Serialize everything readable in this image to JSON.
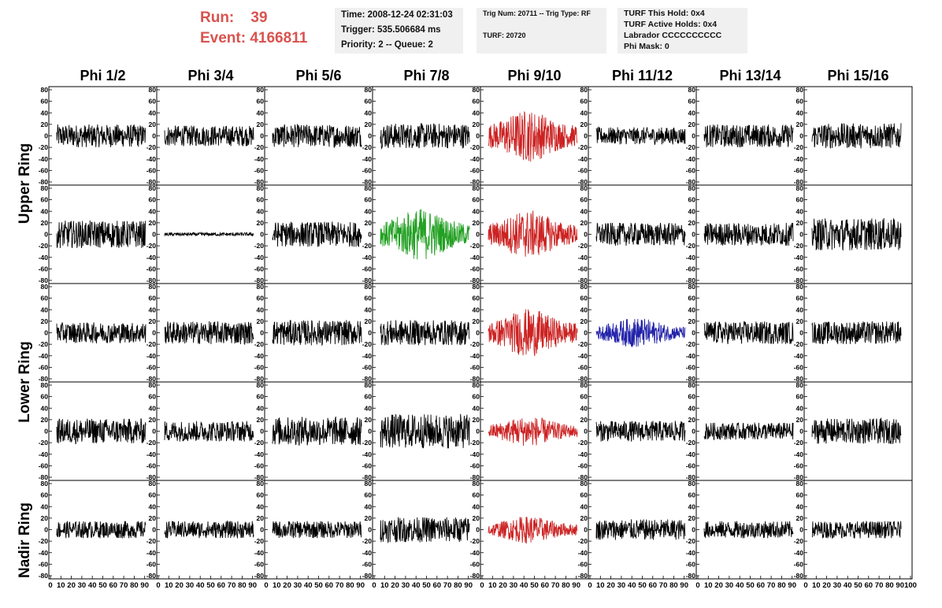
{
  "run_info": {
    "run_label": "Run:",
    "run_value": "39",
    "event_label": "Event:",
    "event_value": "4166811"
  },
  "time_box": {
    "time": "Time: 2008-12-24 02:31:03",
    "trigger": "Trigger: 535.506684 ms",
    "priority": "Priority: 2 -- Queue: 2"
  },
  "trig_box": {
    "trig": "Trig Num: 20711 -- Trig Type: RF",
    "turf": "TURF: 20720"
  },
  "turf_box": {
    "this_hold": "TURF This Hold: 0x4",
    "active_holds": "TURF Active Holds: 0x4",
    "labrador": "Labrador CCCCCCCCCC",
    "phi_mask": "Phi Mask: 0"
  },
  "columns": [
    "Phi 1/2",
    "Phi 3/4",
    "Phi 5/6",
    "Phi 7/8",
    "Phi 9/10",
    "Phi 11/12",
    "Phi 13/14",
    "Phi 15/16"
  ],
  "rings": [
    "Upper Ring",
    "Lower Ring",
    "Nadir Ring"
  ],
  "colors": {
    "title": "#d9534f",
    "default": "#000000",
    "red": "#cc2222",
    "green": "#22a022",
    "blue": "#2222aa",
    "info_bg": "#f0f0f0"
  },
  "chart_data": {
    "type": "line",
    "description_grid": "5 rows x 8 columns of waveform panels",
    "ylim": [
      -80,
      80
    ],
    "yticks": [
      -80,
      -60,
      -40,
      -20,
      0,
      20,
      40,
      60,
      80
    ],
    "xlim": [
      0,
      100
    ],
    "xticks": [
      0,
      10,
      20,
      30,
      40,
      50,
      60,
      70,
      80,
      90,
      100
    ],
    "panel_colors": [
      [
        "default",
        "default",
        "default",
        "default",
        "red",
        "default",
        "default",
        "default"
      ],
      [
        "default",
        "default",
        "default",
        "green",
        "red",
        "default",
        "default",
        "default"
      ],
      [
        "default",
        "default",
        "default",
        "default",
        "red",
        "blue",
        "default",
        "default"
      ],
      [
        "default",
        "default",
        "default",
        "default",
        "red",
        "default",
        "default",
        "default"
      ],
      [
        "default",
        "default",
        "default",
        "default",
        "red",
        "default",
        "default",
        "default"
      ]
    ],
    "panel_amplitudes": [
      [
        20,
        18,
        20,
        22,
        38,
        15,
        20,
        22
      ],
      [
        24,
        3,
        22,
        38,
        35,
        20,
        20,
        28
      ],
      [
        18,
        20,
        22,
        22,
        35,
        22,
        20,
        20
      ],
      [
        22,
        18,
        25,
        30,
        22,
        18,
        15,
        22
      ],
      [
        15,
        15,
        15,
        22,
        20,
        18,
        15,
        15
      ]
    ]
  }
}
